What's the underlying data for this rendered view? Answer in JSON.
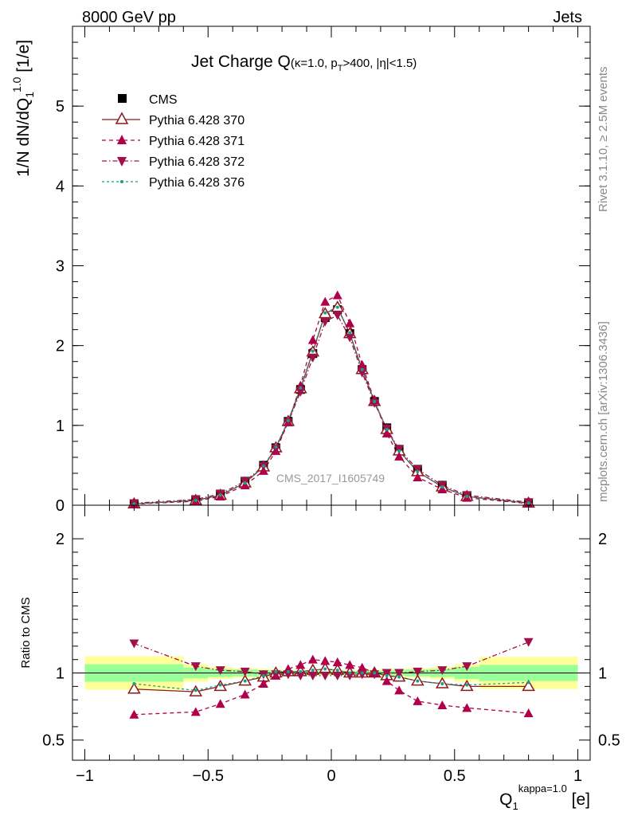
{
  "header": {
    "left": "8000 GeV pp",
    "right": "Jets"
  },
  "side_text": {
    "rivet": "Rivet 3.1.10, ≥ 2.5M events",
    "mcplots": "mcplots.cern.ch [arXiv:1306.3436]"
  },
  "colors": {
    "cms": "#000000",
    "p370": "#8b1a1a",
    "p371": "#b0004a",
    "p372": "#a0104a",
    "p376": "#16a085",
    "band_yellow": "#ffff99",
    "band_green": "#99ff99"
  },
  "chart_data": [
    {
      "id": "main",
      "type": "scatter",
      "title": "Jet Charge Q",
      "title_sub": "(κ=1.0, p",
      "title_sub_sub": "T",
      "title_sub_rest": ">400, |η|<1.5)",
      "ylabel_main": "1/N dN/dQ",
      "ylabel_sub": "1",
      "ylabel_sup": "1.0",
      "ylabel_unit": " [1/e]",
      "watermark": "CMS_2017_I1605749",
      "xlim": [
        -1.05,
        1.05
      ],
      "ylim": [
        0,
        6
      ],
      "yticks": [
        0,
        1,
        2,
        3,
        4,
        5
      ],
      "ytick_labels": [
        "0",
        "1",
        "2",
        "3",
        "4",
        "5"
      ],
      "x": [
        -0.8,
        -0.55,
        -0.45,
        -0.35,
        -0.275,
        -0.225,
        -0.175,
        -0.125,
        -0.075,
        -0.025,
        0.025,
        0.075,
        0.125,
        0.175,
        0.225,
        0.275,
        0.35,
        0.45,
        0.55,
        0.8
      ],
      "series": [
        {
          "name": "CMS",
          "key": "cms",
          "marker": "square",
          "values": [
            0.02,
            0.07,
            0.14,
            0.3,
            0.5,
            0.72,
            1.05,
            1.45,
            1.9,
            2.35,
            2.45,
            2.15,
            1.7,
            1.3,
            0.97,
            0.7,
            0.45,
            0.25,
            0.12,
            0.03
          ]
        },
        {
          "name": "Pythia 6.428 370",
          "key": "p370",
          "marker": "triangle-up-open",
          "dash": "",
          "values": [
            0.018,
            0.06,
            0.125,
            0.28,
            0.48,
            0.72,
            1.05,
            1.46,
            1.92,
            2.4,
            2.48,
            2.15,
            1.7,
            1.3,
            0.95,
            0.68,
            0.42,
            0.23,
            0.11,
            0.027
          ]
        },
        {
          "name": "Pythia 6.428 371",
          "key": "p371",
          "marker": "triangle-up",
          "dash": "5,4",
          "values": [
            0.014,
            0.05,
            0.11,
            0.25,
            0.43,
            0.68,
            1.04,
            1.5,
            2.07,
            2.55,
            2.63,
            2.28,
            1.76,
            1.31,
            0.9,
            0.61,
            0.35,
            0.2,
            0.093,
            0.021
          ]
        },
        {
          "name": "Pythia 6.428 372",
          "key": "p372",
          "marker": "triangle-down",
          "dash": "6,3,1.5,3",
          "values": [
            0.025,
            0.072,
            0.142,
            0.3,
            0.49,
            0.71,
            1.04,
            1.42,
            1.85,
            2.3,
            2.38,
            2.1,
            1.66,
            1.28,
            0.96,
            0.7,
            0.45,
            0.25,
            0.126,
            0.037
          ]
        },
        {
          "name": "Pythia 6.428 376",
          "key": "p376",
          "marker": "dot",
          "dash": "3,3",
          "values": [
            0.018,
            0.06,
            0.127,
            0.28,
            0.49,
            0.73,
            1.06,
            1.47,
            1.93,
            2.41,
            2.48,
            2.16,
            1.7,
            1.3,
            0.95,
            0.68,
            0.42,
            0.23,
            0.108,
            0.028
          ]
        }
      ]
    },
    {
      "id": "ratio",
      "type": "scatter",
      "ylabel": "Ratio to CMS",
      "xlabel_main": "Q",
      "xlabel_sub": "1",
      "xlabel_sup": "kappa=1.0",
      "xlabel_unit": " [e]",
      "xlim": [
        -1.05,
        1.05
      ],
      "ylim": [
        0.35,
        2.25
      ],
      "xticks": [
        -1,
        -0.5,
        0,
        0.5,
        1
      ],
      "xtick_labels": [
        "−1",
        "−0.5",
        "0",
        "0.5",
        "1"
      ],
      "yticks": [
        0.5,
        1,
        2
      ],
      "ytick_labels": [
        "0.5",
        "1",
        "2"
      ],
      "bins": [
        [
          -1.0,
          -0.6
        ],
        [
          -0.6,
          -0.5
        ],
        [
          -0.5,
          -0.4
        ],
        [
          -0.4,
          -0.3
        ],
        [
          -0.3,
          -0.25
        ],
        [
          -0.25,
          -0.2
        ],
        [
          -0.2,
          -0.15
        ],
        [
          -0.15,
          -0.1
        ],
        [
          -0.1,
          -0.05
        ],
        [
          -0.05,
          0.0
        ],
        [
          0.0,
          0.05
        ],
        [
          0.05,
          0.1
        ],
        [
          0.1,
          0.15
        ],
        [
          0.15,
          0.2
        ],
        [
          0.2,
          0.25
        ],
        [
          0.25,
          0.3
        ],
        [
          0.3,
          0.4
        ],
        [
          0.4,
          0.5
        ],
        [
          0.5,
          0.6
        ],
        [
          0.6,
          1.0
        ]
      ],
      "band_yellow": [
        0.125,
        0.065,
        0.045,
        0.035,
        0.03,
        0.028,
        0.025,
        0.022,
        0.02,
        0.02,
        0.02,
        0.02,
        0.022,
        0.025,
        0.028,
        0.03,
        0.035,
        0.045,
        0.065,
        0.12
      ],
      "band_green": [
        0.065,
        0.04,
        0.03,
        0.025,
        0.02,
        0.018,
        0.016,
        0.015,
        0.014,
        0.014,
        0.014,
        0.014,
        0.015,
        0.016,
        0.018,
        0.02,
        0.025,
        0.03,
        0.045,
        0.06
      ],
      "x": [
        -0.8,
        -0.55,
        -0.45,
        -0.35,
        -0.275,
        -0.225,
        -0.175,
        -0.125,
        -0.075,
        -0.025,
        0.025,
        0.075,
        0.125,
        0.175,
        0.225,
        0.275,
        0.35,
        0.45,
        0.55,
        0.8
      ],
      "series": [
        {
          "key": "p370",
          "marker": "triangle-up-open",
          "dash": "",
          "values": [
            0.88,
            0.86,
            0.9,
            0.94,
            0.97,
            1.0,
            1.01,
            1.01,
            1.02,
            1.03,
            1.02,
            1.0,
            1.0,
            1.0,
            0.98,
            0.97,
            0.94,
            0.92,
            0.9,
            0.9
          ]
        },
        {
          "key": "p371",
          "marker": "triangle-up",
          "dash": "5,4",
          "values": [
            0.69,
            0.71,
            0.77,
            0.84,
            0.92,
            0.98,
            1.03,
            1.06,
            1.1,
            1.09,
            1.08,
            1.06,
            1.04,
            1.0,
            0.94,
            0.87,
            0.79,
            0.76,
            0.74,
            0.7
          ]
        },
        {
          "key": "p372",
          "marker": "triangle-down",
          "dash": "6,3,1.5,3",
          "values": [
            1.22,
            1.05,
            1.02,
            1.01,
            0.99,
            0.99,
            0.99,
            0.98,
            0.98,
            0.98,
            0.98,
            0.98,
            0.99,
            0.99,
            1.0,
            1.0,
            1.01,
            1.02,
            1.05,
            1.23
          ]
        },
        {
          "key": "p376",
          "marker": "dot",
          "dash": "3,3",
          "values": [
            0.92,
            0.87,
            0.91,
            0.94,
            0.98,
            1.01,
            1.01,
            1.01,
            1.02,
            1.03,
            1.02,
            1.0,
            1.0,
            1.0,
            0.98,
            0.97,
            0.94,
            0.92,
            0.91,
            0.93
          ]
        }
      ]
    }
  ]
}
